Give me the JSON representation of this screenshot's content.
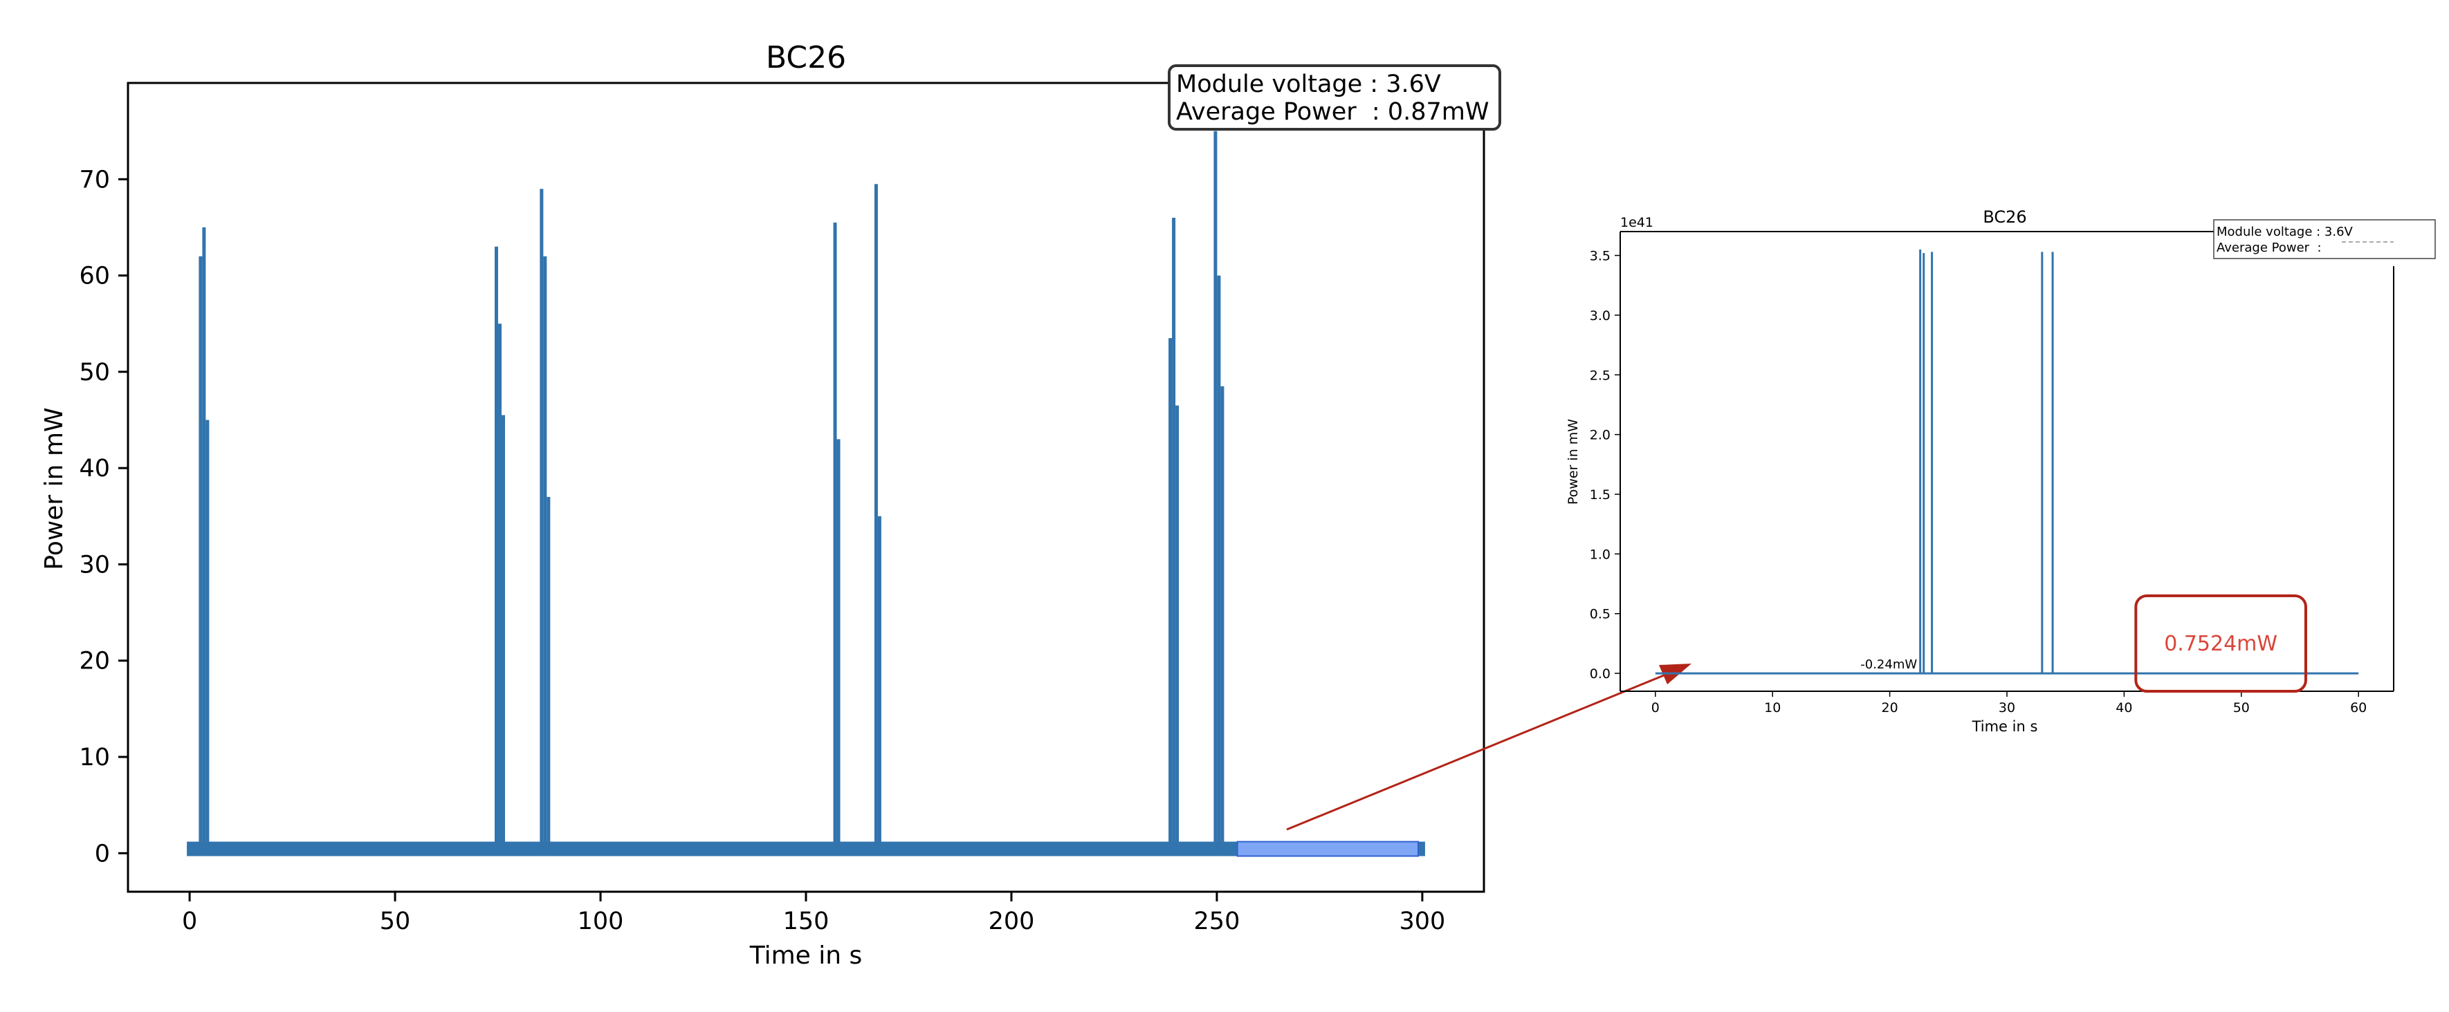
{
  "colors": {
    "series": "#3274ad",
    "axis": "#000000",
    "highlight_fill": "#7fa6f5",
    "highlight_stroke": "#2f61d0",
    "arrow": "#b22418",
    "callout_border": "#b22418",
    "callout_text": "#d9463a"
  },
  "chart_data": [
    {
      "type": "line",
      "title": "BC26",
      "xlabel": "Time in s",
      "ylabel": "Power in mW",
      "xlim": [
        -15,
        315
      ],
      "ylim": [
        -4,
        80
      ],
      "xticks": [
        {
          "value": 0,
          "label": "0"
        },
        {
          "value": 50,
          "label": "50"
        },
        {
          "value": 100,
          "label": "100"
        },
        {
          "value": 150,
          "label": "150"
        },
        {
          "value": 200,
          "label": "200"
        },
        {
          "value": 250,
          "label": "250"
        },
        {
          "value": 300,
          "label": "300"
        }
      ],
      "yticks": [
        {
          "value": 0,
          "label": "0"
        },
        {
          "value": 10,
          "label": "10"
        },
        {
          "value": 20,
          "label": "20"
        },
        {
          "value": 30,
          "label": "30"
        },
        {
          "value": 40,
          "label": "40"
        },
        {
          "value": 50,
          "label": "50"
        },
        {
          "value": 60,
          "label": "60"
        },
        {
          "value": 70,
          "label": "70"
        }
      ],
      "grid": false,
      "baseline": {
        "x_start": 0,
        "x_end": 300,
        "y_min": -0.3,
        "y_max": 1.2
      },
      "spikes": [
        {
          "x": 3.5,
          "peaks": [
            62,
            65,
            45
          ]
        },
        {
          "x": 75.5,
          "peaks": [
            63,
            55,
            45.5
          ]
        },
        {
          "x": 86.5,
          "peaks": [
            69,
            62,
            37
          ]
        },
        {
          "x": 157.5,
          "peaks": [
            65.5,
            43
          ]
        },
        {
          "x": 167.5,
          "peaks": [
            69.5,
            35
          ]
        },
        {
          "x": 239.5,
          "peaks": [
            53.5,
            66,
            46.5
          ]
        },
        {
          "x": 250.5,
          "peaks": [
            75,
            60,
            48.5
          ]
        }
      ],
      "highlight_range": {
        "x_start": 255,
        "x_end": 299,
        "y_min": -0.3,
        "y_max": 1.2
      },
      "annotation": {
        "line1": "Module voltage : 3.6V",
        "line2": "Average Power  : 0.87mW"
      }
    },
    {
      "type": "line",
      "title": "BC26",
      "xlabel": "Time in s",
      "ylabel": "Power in mW",
      "offset_label": "1e41",
      "xlim": [
        -3,
        63
      ],
      "ylim": [
        -0.15,
        3.7
      ],
      "xticks": [
        {
          "value": 0,
          "label": "0"
        },
        {
          "value": 10,
          "label": "10"
        },
        {
          "value": 20,
          "label": "20"
        },
        {
          "value": 30,
          "label": "30"
        },
        {
          "value": 40,
          "label": "40"
        },
        {
          "value": 50,
          "label": "50"
        },
        {
          "value": 60,
          "label": "60"
        }
      ],
      "yticks": [
        {
          "value": 0,
          "label": "0.0"
        },
        {
          "value": 0.5,
          "label": "0.5"
        },
        {
          "value": 1.0,
          "label": "1.0"
        },
        {
          "value": 1.5,
          "label": "1.5"
        },
        {
          "value": 2.0,
          "label": "2.0"
        },
        {
          "value": 2.5,
          "label": "2.5"
        },
        {
          "value": 3.0,
          "label": "3.0"
        },
        {
          "value": 3.5,
          "label": "3.5"
        }
      ],
      "grid": false,
      "baseline": {
        "x_start": 0,
        "x_end": 60,
        "y": 0
      },
      "spikes": [
        {
          "x": 22.6,
          "peak": 3.55
        },
        {
          "x": 22.9,
          "peak": 3.52
        },
        {
          "x": 23.6,
          "peak": 3.53
        },
        {
          "x": 33.0,
          "peak": 3.53
        },
        {
          "x": 33.9,
          "peak": 3.53
        }
      ],
      "data_labels": [
        {
          "text": "-0.24mW",
          "x": 17.5,
          "y": 0.04
        }
      ],
      "callout": {
        "text": "0.7524mW",
        "x_start": 41,
        "x_end": 55.5,
        "y_min": -0.15,
        "y_max": 0.65
      },
      "annotation": {
        "line1": "Module voltage : 3.6V",
        "line2": "Average Power  :"
      }
    }
  ]
}
